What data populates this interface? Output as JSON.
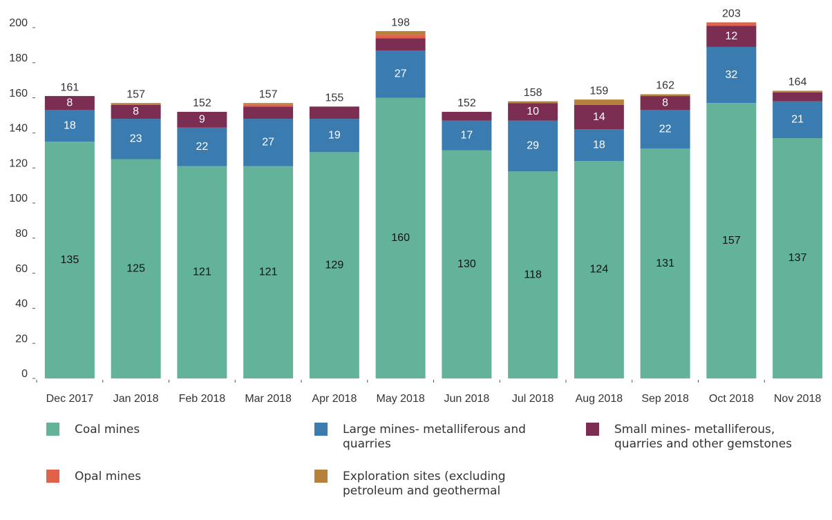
{
  "chart_data": {
    "type": "stacked-bar",
    "categories": [
      "Dec 2017",
      "Jan 2018",
      "Feb 2018",
      "Mar 2018",
      "Apr 2018",
      "May 2018",
      "Jun 2018",
      "Jul 2018",
      "Aug 2018",
      "Sep 2018",
      "Oct 2018",
      "Nov 2018"
    ],
    "series": [
      {
        "name": "Coal mines",
        "color": "#63b39b",
        "values": [
          135,
          125,
          121,
          121,
          129,
          160,
          130,
          118,
          124,
          131,
          157,
          137
        ]
      },
      {
        "name": "Large mines- metalliferous and quarries",
        "color": "#3b7cb0",
        "values": [
          18,
          23,
          22,
          27,
          19,
          27,
          17,
          29,
          18,
          22,
          32,
          21
        ]
      },
      {
        "name": "Small mines- metalliferous, quarries and other gemstones",
        "color": "#7b2d52",
        "values": [
          8,
          8,
          9,
          7,
          7,
          7,
          5,
          10,
          14,
          8,
          12,
          5
        ]
      },
      {
        "name": "Opal mines",
        "color": "#e0624a",
        "values": [
          0,
          0,
          0,
          1,
          0,
          2,
          0,
          0,
          0,
          0,
          2,
          0
        ]
      },
      {
        "name": "Exploration sites (excluding petroleum and geothermal",
        "color": "#b5813b",
        "values": [
          0,
          1,
          0,
          1,
          0,
          2,
          0,
          1,
          3,
          1,
          0,
          1
        ]
      }
    ],
    "totals": [
      161,
      157,
      152,
      157,
      155,
      198,
      152,
      158,
      159,
      162,
      203,
      164
    ],
    "ylim": [
      0,
      200
    ],
    "yticks": [
      0,
      20,
      40,
      60,
      80,
      100,
      120,
      140,
      160,
      180,
      200
    ]
  }
}
